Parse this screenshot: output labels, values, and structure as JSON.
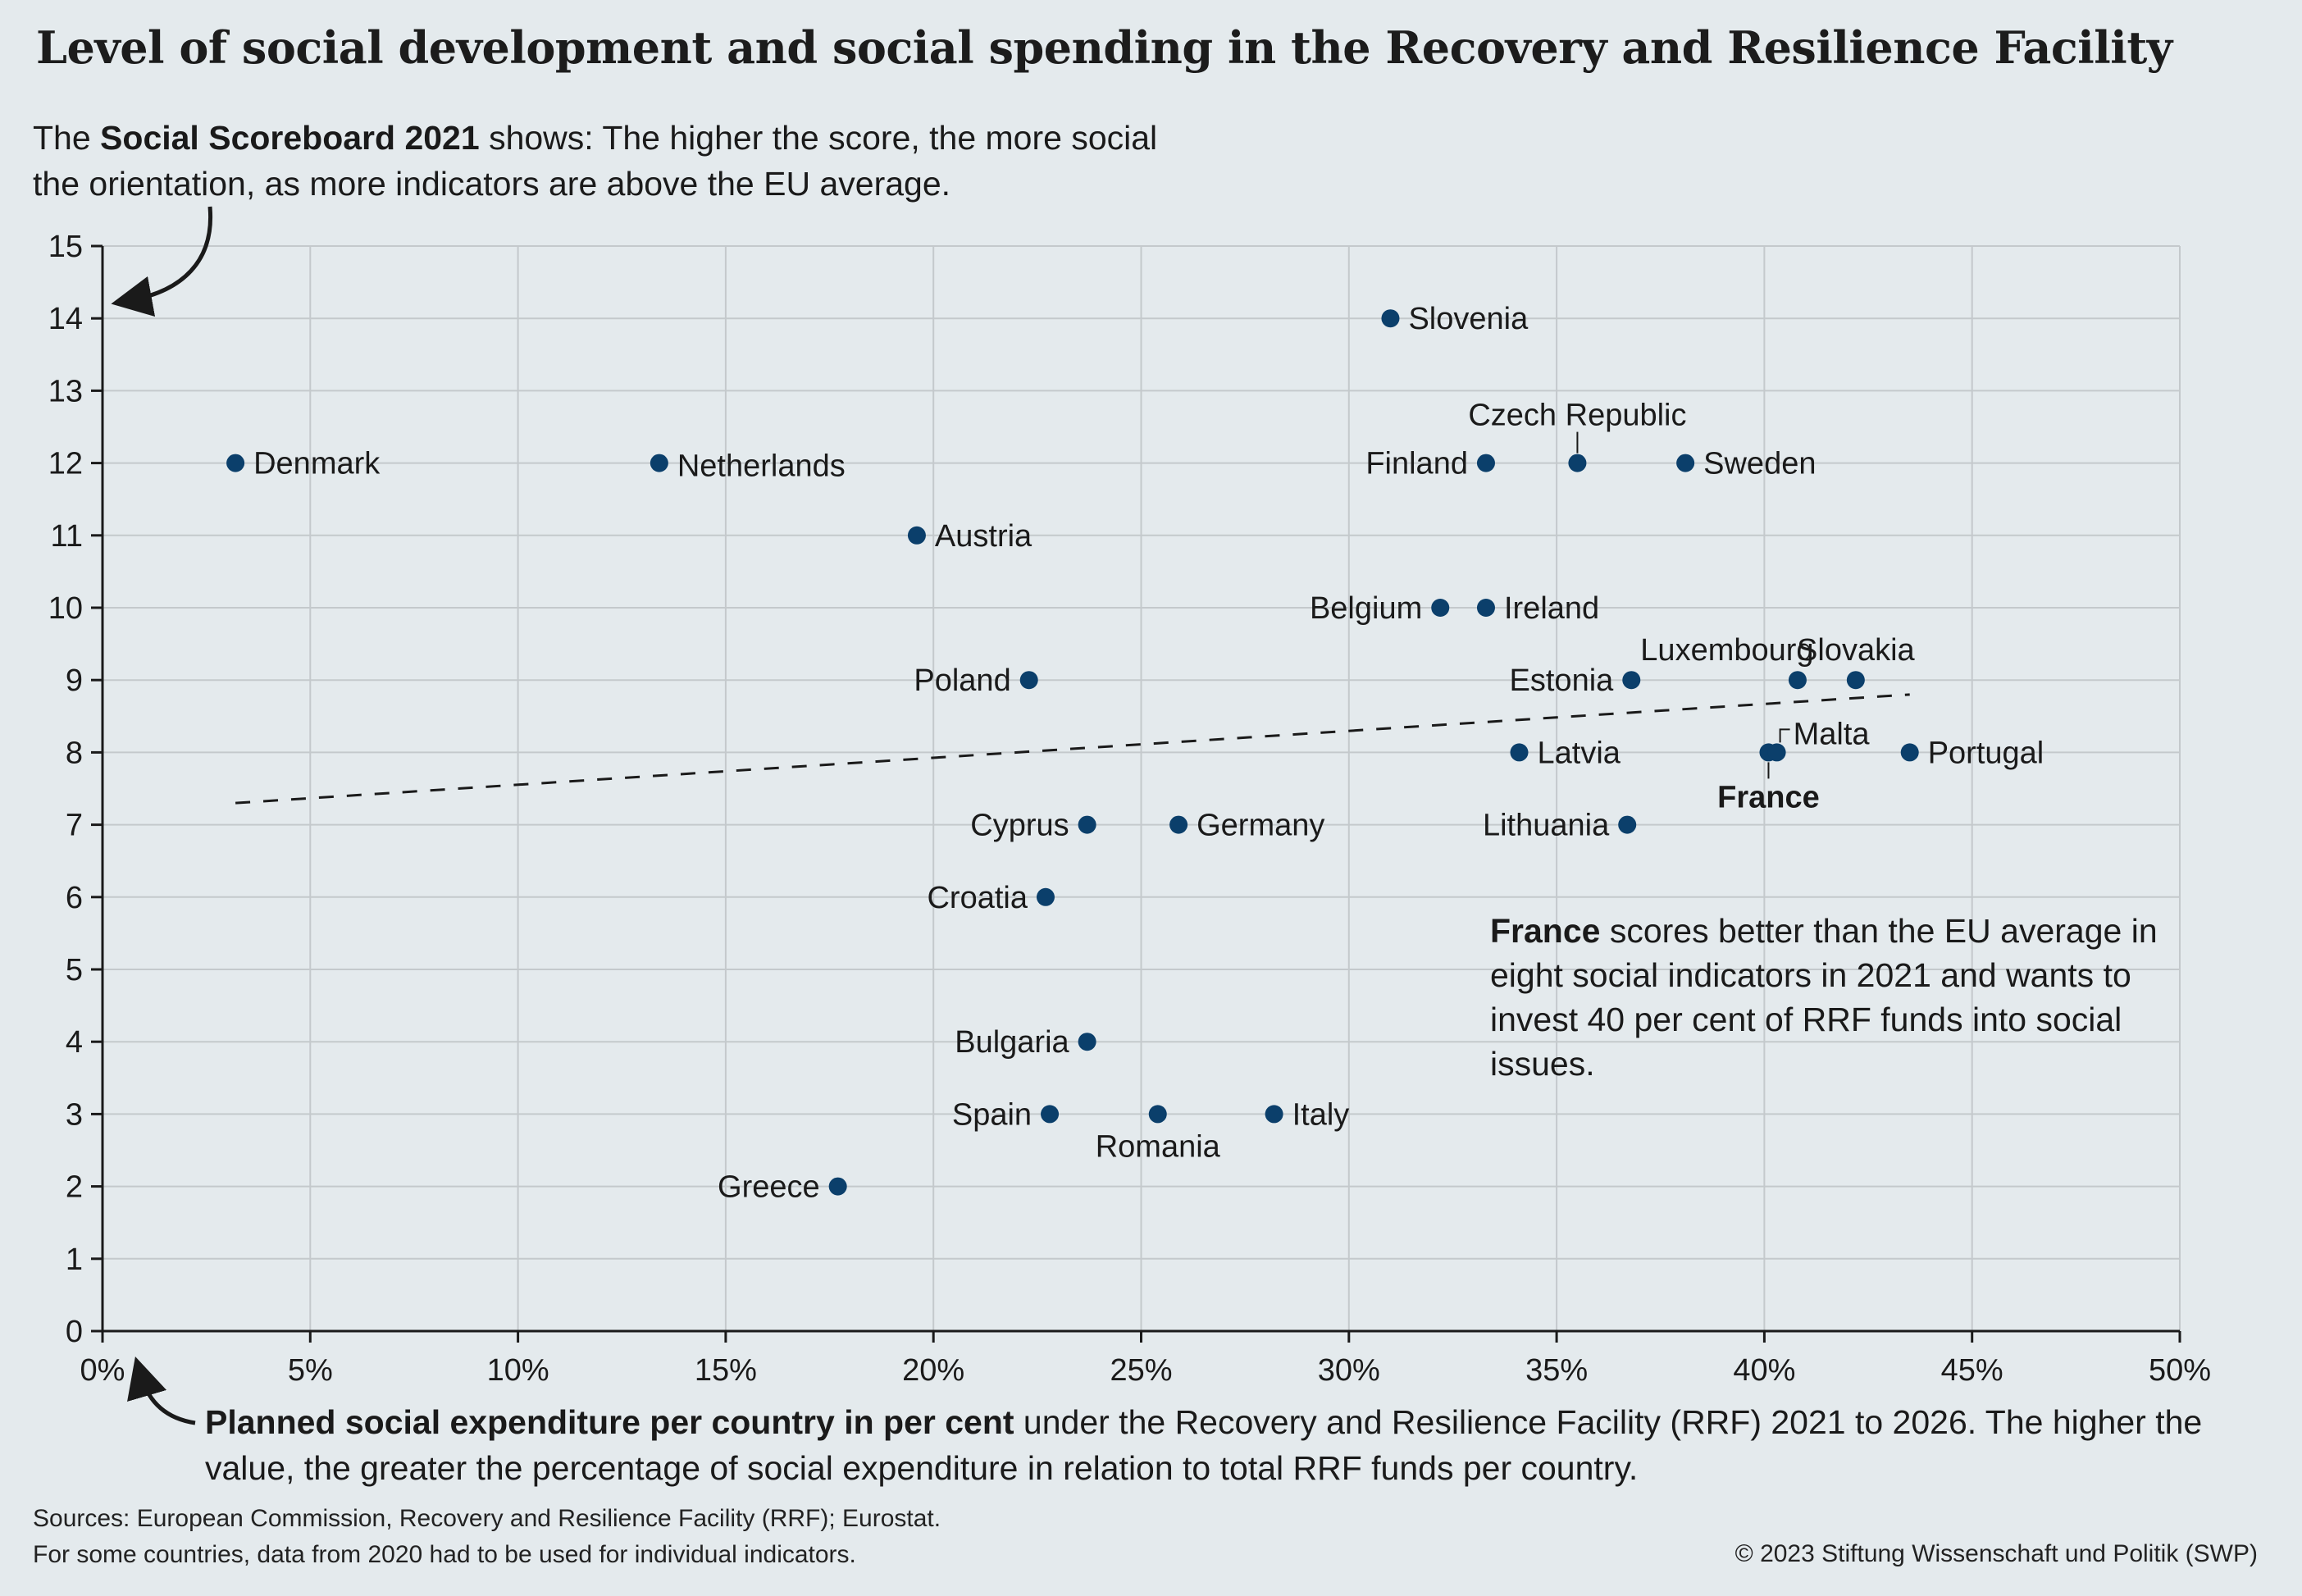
{
  "title": "Level of social development and social spending in the Recovery and Resilience Facility",
  "y_explanation": {
    "prefix": "The ",
    "bold": "Social Scoreboard 2021",
    "rest": " shows: The higher the score, the more social the orientation, as more indicators are above the EU average."
  },
  "x_explanation": {
    "bold": "Planned social expenditure per country in per cent",
    "rest": " under the Recovery and Resilience Facility (RRF) 2021 to 2026. The higher the value, the greater the percentage of social expenditure in relation to total RRF funds per country."
  },
  "note": {
    "bold": "France",
    "rest": " scores better than the EU average in eight social indicators in 2021 and wants to invest 40 per cent of RRF funds into social issues."
  },
  "sources": {
    "line1": "Sources:  European Commission, Recovery and Resilience Facility (RRF); Eurostat.",
    "line2": "For some countries, data from 2020 had to be used for individual indicators."
  },
  "copyright": "© 2023 Stiftung Wissenschaft und Politik (SWP)",
  "colors": {
    "point": "#0b3f6b",
    "grid": "#c4c9cc",
    "background": "#e4eaed"
  },
  "chart_data": {
    "type": "scatter",
    "xlim": [
      0,
      50
    ],
    "ylim": [
      0,
      15
    ],
    "xticks": [
      "0%",
      "5%",
      "10%",
      "15%",
      "20%",
      "25%",
      "30%",
      "35%",
      "40%",
      "45%",
      "50%"
    ],
    "yticks": [
      "0",
      "1",
      "2",
      "3",
      "4",
      "5",
      "6",
      "7",
      "8",
      "9",
      "10",
      "11",
      "12",
      "13",
      "14",
      "15"
    ],
    "grid": true,
    "trendline": {
      "style": "dashed",
      "from": [
        3.2,
        7.3
      ],
      "to": [
        43.5,
        8.8
      ]
    },
    "points": [
      {
        "name": "Denmark",
        "x": 3.2,
        "y": 12,
        "label_pos": "right"
      },
      {
        "name": "Netherlands",
        "x": 13.4,
        "y": 12,
        "label_pos": "right-below"
      },
      {
        "name": "Austria",
        "x": 19.6,
        "y": 11,
        "label_pos": "right"
      },
      {
        "name": "Poland",
        "x": 22.3,
        "y": 9,
        "label_pos": "left"
      },
      {
        "name": "Cyprus",
        "x": 23.7,
        "y": 7,
        "label_pos": "left"
      },
      {
        "name": "Croatia",
        "x": 22.7,
        "y": 6,
        "label_pos": "left"
      },
      {
        "name": "Germany",
        "x": 25.9,
        "y": 7,
        "label_pos": "right"
      },
      {
        "name": "Bulgaria",
        "x": 23.7,
        "y": 4,
        "label_pos": "left"
      },
      {
        "name": "Spain",
        "x": 22.8,
        "y": 3,
        "label_pos": "left"
      },
      {
        "name": "Romania",
        "x": 25.4,
        "y": 3,
        "label_pos": "below"
      },
      {
        "name": "Italy",
        "x": 28.2,
        "y": 3,
        "label_pos": "right"
      },
      {
        "name": "Greece",
        "x": 17.7,
        "y": 2,
        "label_pos": "left"
      },
      {
        "name": "Slovenia",
        "x": 31.0,
        "y": 14,
        "label_pos": "right"
      },
      {
        "name": "Finland",
        "x": 33.3,
        "y": 12,
        "label_pos": "left"
      },
      {
        "name": "Czech Republic",
        "x": 35.5,
        "y": 12,
        "label_pos": "above"
      },
      {
        "name": "Sweden",
        "x": 38.1,
        "y": 12,
        "label_pos": "right"
      },
      {
        "name": "Belgium",
        "x": 32.2,
        "y": 10,
        "label_pos": "left"
      },
      {
        "name": "Ireland",
        "x": 33.3,
        "y": 10,
        "label_pos": "right"
      },
      {
        "name": "Estonia",
        "x": 36.8,
        "y": 9,
        "label_pos": "left"
      },
      {
        "name": "Luxembourg",
        "x": 40.8,
        "y": 9,
        "label_pos": "above-left"
      },
      {
        "name": "Slovakia",
        "x": 42.2,
        "y": 9,
        "label_pos": "above-right"
      },
      {
        "name": "Latvia",
        "x": 34.1,
        "y": 8,
        "label_pos": "right"
      },
      {
        "name": "France",
        "x": 40.1,
        "y": 8,
        "label_pos": "below-bold"
      },
      {
        "name": "Malta",
        "x": 40.3,
        "y": 8,
        "label_pos": "above-right-leader"
      },
      {
        "name": "Portugal",
        "x": 43.5,
        "y": 8,
        "label_pos": "right"
      },
      {
        "name": "Lithuania",
        "x": 36.7,
        "y": 7,
        "label_pos": "left"
      }
    ]
  }
}
